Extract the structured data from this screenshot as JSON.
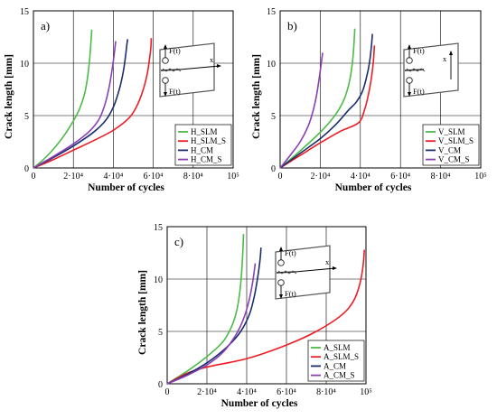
{
  "colors": {
    "green": "#4cbb47",
    "red": "#ee1c24",
    "navy": "#1a2e6e",
    "purple": "#8a3fb5"
  },
  "chart_data": [
    {
      "type": "line",
      "panel": "a)",
      "xlabel": "Number of cycles",
      "ylabel": "Crack length [mm]",
      "xlim": [
        0,
        100000
      ],
      "ylim": [
        0,
        15
      ],
      "xticks": [
        "0",
        "2·10⁴",
        "4·10⁴",
        "6·10⁴",
        "8·10⁴",
        "10⁵"
      ],
      "yticks": [
        "0",
        "5",
        "10",
        "15"
      ],
      "grid": true,
      "legend_position": "bottom-right",
      "inset_labels": {
        "top_force": "F(t)",
        "bottom_force": "F(t)",
        "axis": "x"
      },
      "series": [
        {
          "name": "H_SLM",
          "color": "#4cbb47",
          "points": [
            [
              0,
              0
            ],
            [
              5000,
              0.8
            ],
            [
              10000,
              1.8
            ],
            [
              15000,
              3.0
            ],
            [
              20000,
              4.5
            ],
            [
              23000,
              5.6
            ],
            [
              25500,
              7.0
            ],
            [
              27000,
              8.5
            ],
            [
              28200,
              10.5
            ],
            [
              28900,
              12.3
            ],
            [
              29200,
              13.2
            ]
          ]
        },
        {
          "name": "H_SLM_S",
          "color": "#ee1c24",
          "points": [
            [
              0,
              0
            ],
            [
              10000,
              0.8
            ],
            [
              20000,
              1.7
            ],
            [
              30000,
              2.6
            ],
            [
              40000,
              3.6
            ],
            [
              48000,
              4.8
            ],
            [
              52000,
              6.0
            ],
            [
              55000,
              7.5
            ],
            [
              57000,
              9.0
            ],
            [
              58200,
              10.5
            ],
            [
              58800,
              11.5
            ],
            [
              59000,
              12.4
            ]
          ]
        },
        {
          "name": "H_CM",
          "color": "#1a2e6e",
          "points": [
            [
              0,
              0
            ],
            [
              10000,
              1.0
            ],
            [
              20000,
              2.1
            ],
            [
              30000,
              3.4
            ],
            [
              36000,
              4.5
            ],
            [
              40000,
              5.8
            ],
            [
              43000,
              7.5
            ],
            [
              45000,
              9.2
            ],
            [
              46200,
              10.8
            ],
            [
              46800,
              11.8
            ],
            [
              47200,
              12.3
            ]
          ]
        },
        {
          "name": "H_CM_S",
          "color": "#8a3fb5",
          "points": [
            [
              0,
              0
            ],
            [
              10000,
              1.1
            ],
            [
              20000,
              2.3
            ],
            [
              28000,
              3.5
            ],
            [
              33000,
              4.7
            ],
            [
              36000,
              6.2
            ],
            [
              38000,
              7.8
            ],
            [
              39400,
              9.4
            ],
            [
              40400,
              10.8
            ],
            [
              40900,
              11.6
            ],
            [
              41200,
              12.1
            ]
          ]
        }
      ]
    },
    {
      "type": "line",
      "panel": "b)",
      "xlabel": "Number of cycles",
      "ylabel": "Crack length [mm]",
      "xlim": [
        0,
        100000
      ],
      "ylim": [
        0,
        15
      ],
      "xticks": [
        "0",
        "2·10⁴",
        "4·10⁴",
        "6·10⁴",
        "8·10⁴",
        "10⁵"
      ],
      "yticks": [
        "0",
        "5",
        "10",
        "15"
      ],
      "grid": true,
      "legend_position": "bottom-right",
      "inset_labels": {
        "top_force": "F(t)",
        "bottom_force": "F(t)",
        "axis": "x"
      },
      "series": [
        {
          "name": "V_SLM",
          "color": "#4cbb47",
          "points": [
            [
              0,
              0
            ],
            [
              8000,
              1.3
            ],
            [
              15000,
              2.5
            ],
            [
              22000,
              3.8
            ],
            [
              28000,
              5.2
            ],
            [
              32000,
              6.6
            ],
            [
              34500,
              8.2
            ],
            [
              36000,
              10.0
            ],
            [
              36800,
              11.8
            ],
            [
              37200,
              13.3
            ]
          ]
        },
        {
          "name": "V_SLM_S",
          "color": "#ee1c24",
          "points": [
            [
              0,
              0
            ],
            [
              10000,
              1.2
            ],
            [
              20000,
              2.4
            ],
            [
              30000,
              3.5
            ],
            [
              39000,
              4.3
            ],
            [
              42000,
              5.5
            ],
            [
              44000,
              7.0
            ],
            [
              45500,
              8.6
            ],
            [
              46500,
              10.2
            ],
            [
              47000,
              11.7
            ]
          ]
        },
        {
          "name": "V_CM",
          "color": "#1a2e6e",
          "points": [
            [
              0,
              0
            ],
            [
              10000,
              1.4
            ],
            [
              20000,
              2.8
            ],
            [
              28000,
              4.2
            ],
            [
              34000,
              5.5
            ],
            [
              38000,
              6.3
            ],
            [
              41000,
              7.3
            ],
            [
              43000,
              8.6
            ],
            [
              44500,
              10.0
            ],
            [
              45500,
              11.6
            ],
            [
              46000,
              12.8
            ]
          ]
        },
        {
          "name": "V_CM_S",
          "color": "#8a3fb5",
          "points": [
            [
              0,
              0
            ],
            [
              5000,
              1.2
            ],
            [
              10000,
              2.5
            ],
            [
              14000,
              4.0
            ],
            [
              16500,
              5.5
            ],
            [
              18200,
              7.0
            ],
            [
              19500,
              8.6
            ],
            [
              20500,
              10.0
            ],
            [
              21200,
              11.0
            ]
          ]
        }
      ]
    },
    {
      "type": "line",
      "panel": "c)",
      "xlabel": "Number of cycles",
      "ylabel": "Crack length [mm]",
      "xlim": [
        0,
        100000
      ],
      "ylim": [
        0,
        15
      ],
      "xticks": [
        "0",
        "2·10⁴",
        "4·10⁴",
        "6·10⁴",
        "8·10⁴",
        "10⁵"
      ],
      "yticks": [
        "0",
        "5",
        "10",
        "15"
      ],
      "grid": true,
      "legend_position": "bottom-right",
      "inset_labels": {
        "top_force": "F(t)",
        "bottom_force": "F(t)",
        "axis": "x"
      },
      "series": [
        {
          "name": "A_SLM",
          "color": "#4cbb47",
          "points": [
            [
              0,
              0
            ],
            [
              10000,
              1.2
            ],
            [
              20000,
              2.6
            ],
            [
              28000,
              4.0
            ],
            [
              32500,
              5.5
            ],
            [
              35000,
              7.0
            ],
            [
              36500,
              8.7
            ],
            [
              37400,
              10.5
            ],
            [
              38000,
              12.4
            ],
            [
              38400,
              14.3
            ]
          ]
        },
        {
          "name": "A_SLM_S",
          "color": "#ee1c24",
          "points": [
            [
              0,
              0
            ],
            [
              10000,
              1.0
            ],
            [
              20000,
              1.6
            ],
            [
              40000,
              2.4
            ],
            [
              60000,
              3.7
            ],
            [
              75000,
              5.0
            ],
            [
              88000,
              6.6
            ],
            [
              94000,
              8.0
            ],
            [
              97000,
              9.6
            ],
            [
              98500,
              11.2
            ],
            [
              99200,
              12.8
            ]
          ]
        },
        {
          "name": "A_CM",
          "color": "#1a2e6e",
          "points": [
            [
              0,
              0
            ],
            [
              10000,
              0.9
            ],
            [
              20000,
              2.0
            ],
            [
              30000,
              3.5
            ],
            [
              37000,
              5.0
            ],
            [
              41500,
              6.7
            ],
            [
              44000,
              8.5
            ],
            [
              45800,
              10.5
            ],
            [
              46800,
              12.0
            ],
            [
              47200,
              13.0
            ]
          ]
        },
        {
          "name": "A_CM_S",
          "color": "#8a3fb5",
          "points": [
            [
              0,
              0
            ],
            [
              10000,
              0.8
            ],
            [
              20000,
              1.8
            ],
            [
              28000,
              3.0
            ],
            [
              34000,
              4.5
            ],
            [
              38000,
              6.0
            ],
            [
              41000,
              7.8
            ],
            [
              43000,
              9.7
            ],
            [
              44300,
              11.5
            ]
          ]
        }
      ]
    }
  ]
}
